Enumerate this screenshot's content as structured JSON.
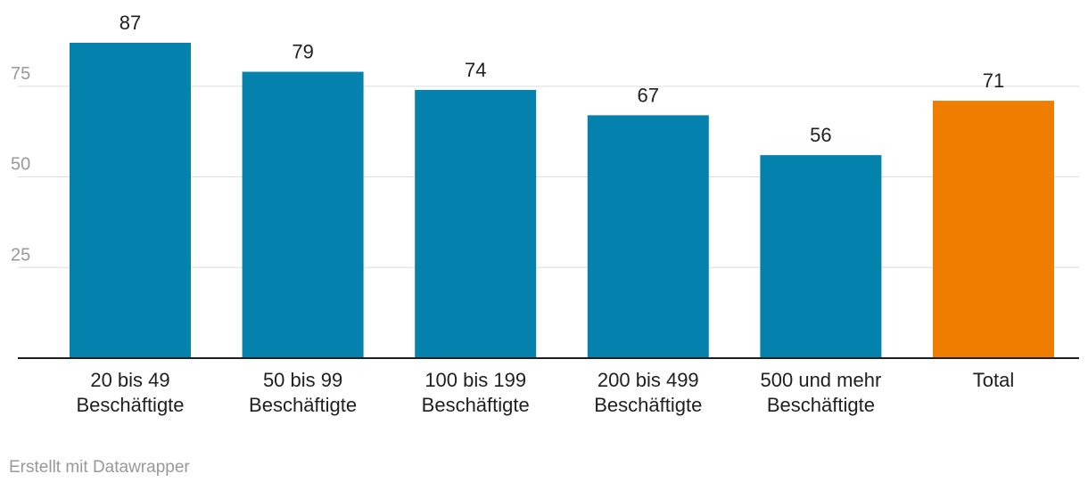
{
  "chart_data": {
    "type": "bar",
    "categories": [
      [
        "20 bis 49",
        "Beschäftigte"
      ],
      [
        "50 bis 99",
        "Beschäftigte"
      ],
      [
        "100 bis 199",
        "Beschäftigte"
      ],
      [
        "200 bis 499",
        "Beschäftigte"
      ],
      [
        "500 und mehr",
        "Beschäftigte"
      ],
      [
        "Total"
      ]
    ],
    "values": [
      87,
      79,
      74,
      67,
      56,
      71
    ],
    "bar_colors": [
      "#0481ad",
      "#0481ad",
      "#0481ad",
      "#0481ad",
      "#0481ad",
      "#ef7d00"
    ],
    "yticks": [
      25,
      50,
      75
    ],
    "ylim": [
      0,
      87
    ],
    "grid": true,
    "xlabel": "",
    "ylabel": "",
    "title": ""
  },
  "footer": {
    "credit": "Erstellt mit Datawrapper"
  }
}
